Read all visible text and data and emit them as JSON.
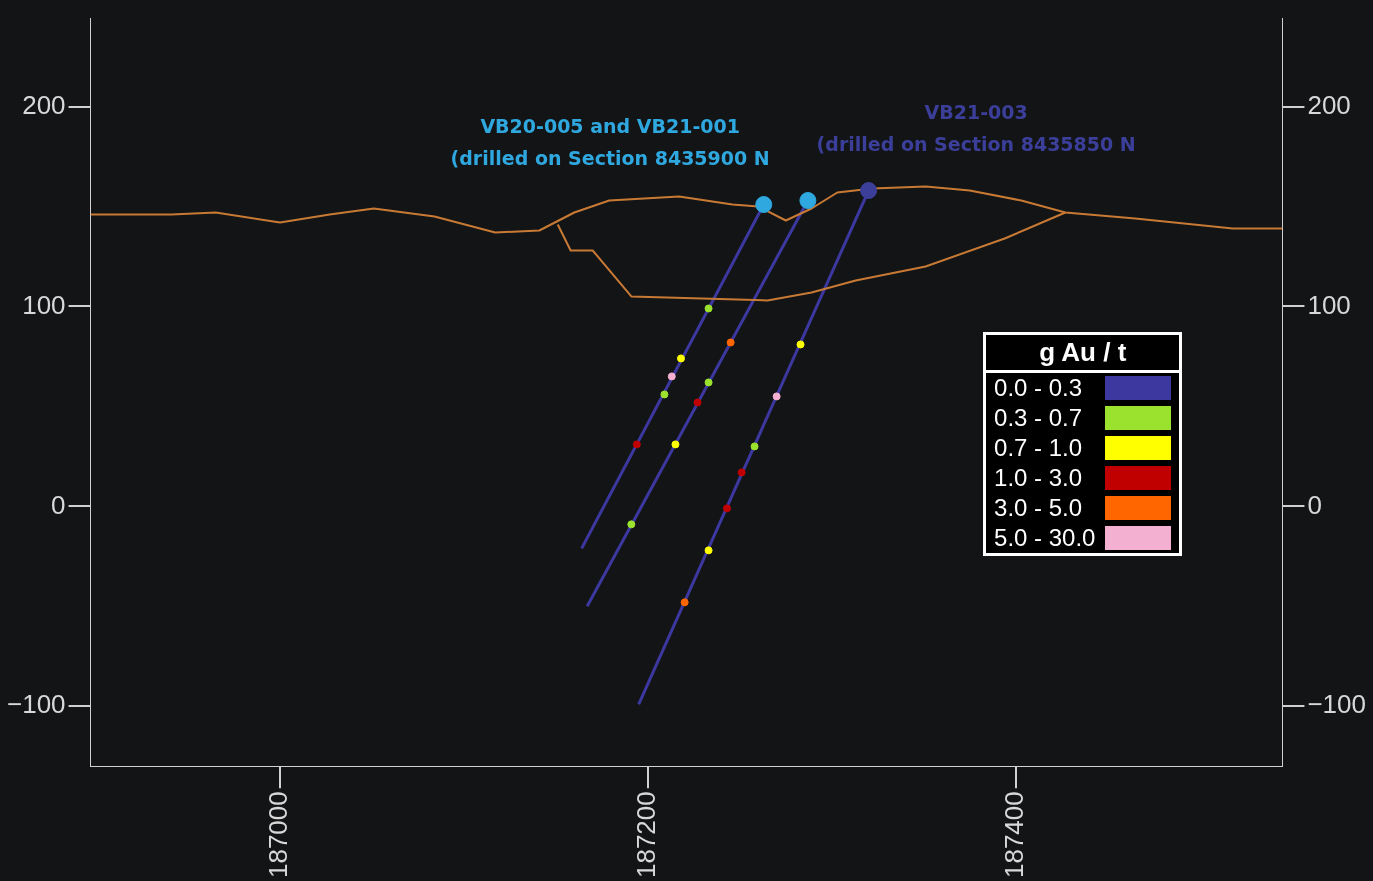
{
  "chart_data": {
    "type": "line",
    "xlim": [
      186897,
      187545
    ],
    "ylim": [
      -130,
      244
    ],
    "y2lim": [
      -130,
      244
    ],
    "xticks": [
      187000,
      187200,
      187400
    ],
    "yticks": [
      -100,
      0,
      100,
      200
    ],
    "y2ticks": [
      -100,
      0,
      100,
      200
    ],
    "grid": false,
    "legend": "right",
    "legend_title": "g Au / t",
    "annotations": [
      {
        "text": "VB20-005 and VB21-001\n(drilled on Section 8435900 N",
        "x": 187263,
        "y": 151
      },
      {
        "text": "VB21-003\n(drilled on Section 8435850 N",
        "x": 187320,
        "y": 158
      }
    ],
    "series": [
      {
        "color": "#c87a35",
        "x": [
          186897,
          186941,
          186965,
          187000,
          187027,
          187051,
          187084,
          187117,
          187141,
          187160,
          187179,
          187217,
          187246,
          187260,
          187275,
          187289,
          187303,
          187322,
          187351,
          187375,
          187403,
          187427,
          187465,
          187518,
          187545
        ],
        "values": [
          146,
          146,
          147,
          142,
          146,
          149,
          145,
          137,
          138,
          147,
          153,
          155,
          151,
          150,
          143,
          149,
          157,
          159,
          160,
          158,
          153,
          147,
          144,
          139,
          139
        ]
      },
      {
        "color": "#c87a35",
        "x": [
          187151,
          187158,
          187170,
          187191,
          187265,
          187289,
          187313,
          187351,
          187394,
          187427
        ],
        "values": [
          141,
          128,
          128,
          105,
          103,
          107,
          113,
          120,
          134,
          147
        ]
      },
      {
        "name": "0.0 - 0.3",
        "color": "#3c38a0",
        "x": [
          187263,
          187164,
          null,
          187287,
          187167,
          null,
          187320,
          187195
        ],
        "values": [
          151,
          -21,
          null,
          153,
          -50,
          null,
          158,
          -99
        ]
      },
      {
        "type": "scatter",
        "marker": "circle",
        "colors": [
          "#2fa8e0",
          "#2fa8e0",
          "#3b3f9a"
        ],
        "x": [
          187263,
          187287,
          187320
        ],
        "values": [
          151,
          153,
          158
        ]
      },
      {
        "type": "scatter",
        "name": "0.3 - 0.7",
        "color": "#9be22f",
        "x": [
          187233,
          187209,
          187233,
          187258,
          187191
        ],
        "values": [
          99,
          56,
          62,
          30,
          -9
        ]
      },
      {
        "type": "scatter",
        "name": "0.7 - 1.0",
        "color": "#ffff00",
        "x": [
          187218,
          187215,
          187233,
          187283
        ],
        "values": [
          74,
          31,
          -22,
          81
        ]
      },
      {
        "type": "scatter",
        "name": "1.0 - 3.0",
        "color": "#c00000",
        "x": [
          187227,
          187251,
          187243,
          187194
        ],
        "values": [
          52,
          17,
          -1,
          31
        ]
      },
      {
        "type": "scatter",
        "name": "3.0 - 5.0",
        "color": "#ff6600",
        "x": [
          187245,
          187220
        ],
        "values": [
          82,
          -48
        ]
      },
      {
        "type": "scatter",
        "name": "5.0 - 30.0",
        "color": "#f4b0d0",
        "x": [
          187213,
          187270
        ],
        "values": [
          65,
          55
        ]
      }
    ]
  }
}
